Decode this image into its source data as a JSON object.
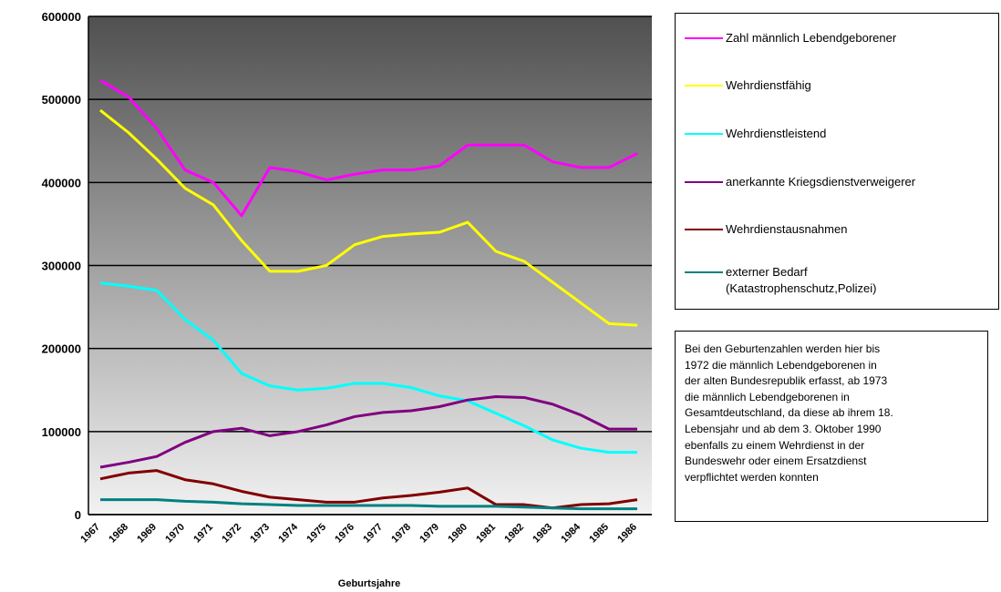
{
  "chart_data": {
    "type": "line",
    "x_label": "Geburtsjahre",
    "categories": [
      "1967",
      "1968",
      "1969",
      "1970",
      "1971",
      "1972",
      "1973",
      "1974",
      "1975",
      "1976",
      "1977",
      "1978",
      "1979",
      "1980",
      "1981",
      "1982",
      "1983",
      "1984",
      "1985",
      "1986"
    ],
    "series": [
      {
        "name": "Zahl männlich Lebendgeborener",
        "color": "#ff00ff",
        "values": [
          523000,
          503000,
          465000,
          415000,
          400000,
          360000,
          418000,
          413000,
          403000,
          410000,
          415000,
          415000,
          420000,
          445000,
          445000,
          445000,
          425000,
          418000,
          418000,
          435000
        ]
      },
      {
        "name": "Wehrdienstfähig",
        "color": "#ffff00",
        "values": [
          487000,
          460000,
          428000,
          393000,
          373000,
          330000,
          293000,
          293000,
          300000,
          325000,
          335000,
          338000,
          340000,
          352000,
          317000,
          305000,
          280000,
          255000,
          230000,
          228000
        ]
      },
      {
        "name": "Wehrdienstleistend",
        "color": "#00ffff",
        "values": [
          279000,
          275000,
          270000,
          235000,
          210000,
          170000,
          155000,
          150000,
          152000,
          158000,
          158000,
          153000,
          143000,
          137000,
          122000,
          107000,
          90000,
          80000,
          75000,
          75000
        ]
      },
      {
        "name": "anerkannte Kriegsdienstverweigerer",
        "color": "#800080",
        "values": [
          57000,
          63000,
          70000,
          87000,
          100000,
          104000,
          95000,
          100000,
          108000,
          118000,
          123000,
          125000,
          130000,
          138000,
          142000,
          141000,
          133000,
          120000,
          103000,
          103000
        ]
      },
      {
        "name": "Wehrdienstausnahmen",
        "color": "#800000",
        "values": [
          43000,
          50000,
          53000,
          42000,
          37000,
          28000,
          21000,
          18000,
          15000,
          15000,
          20000,
          23000,
          27000,
          32000,
          12000,
          12000,
          8000,
          12000,
          13000,
          18000
        ]
      },
      {
        "name": "externer Bedarf\n(Katastrophenschutz,Polizei)",
        "color": "#008080",
        "values": [
          18000,
          18000,
          18000,
          16000,
          15000,
          13000,
          12000,
          11000,
          11000,
          11000,
          11000,
          11000,
          10000,
          10000,
          10000,
          9000,
          8000,
          7000,
          7000,
          7000
        ]
      }
    ],
    "ylim": [
      0,
      600000
    ],
    "yticks": [
      0,
      100000,
      200000,
      300000,
      400000,
      500000,
      600000
    ],
    "grid": true,
    "legend": "right",
    "annotation_lines": [
      "Bei den Geburtenzahlen werden hier  bis",
      "1972 die männlich Lebendgeborenen in",
      "der alten Bundesrepublik erfasst, ab 1973",
      "die männlich Lebendgeborenen in",
      "Gesamtdeutschland, da diese ab ihrem 18.",
      "Lebensjahr und ab dem 3. Oktober 1990",
      "ebenfalls zu einem Wehrdienst in der",
      "Bundeswehr oder einem Ersatzdienst",
      "verpflichtet werden konnten"
    ]
  }
}
